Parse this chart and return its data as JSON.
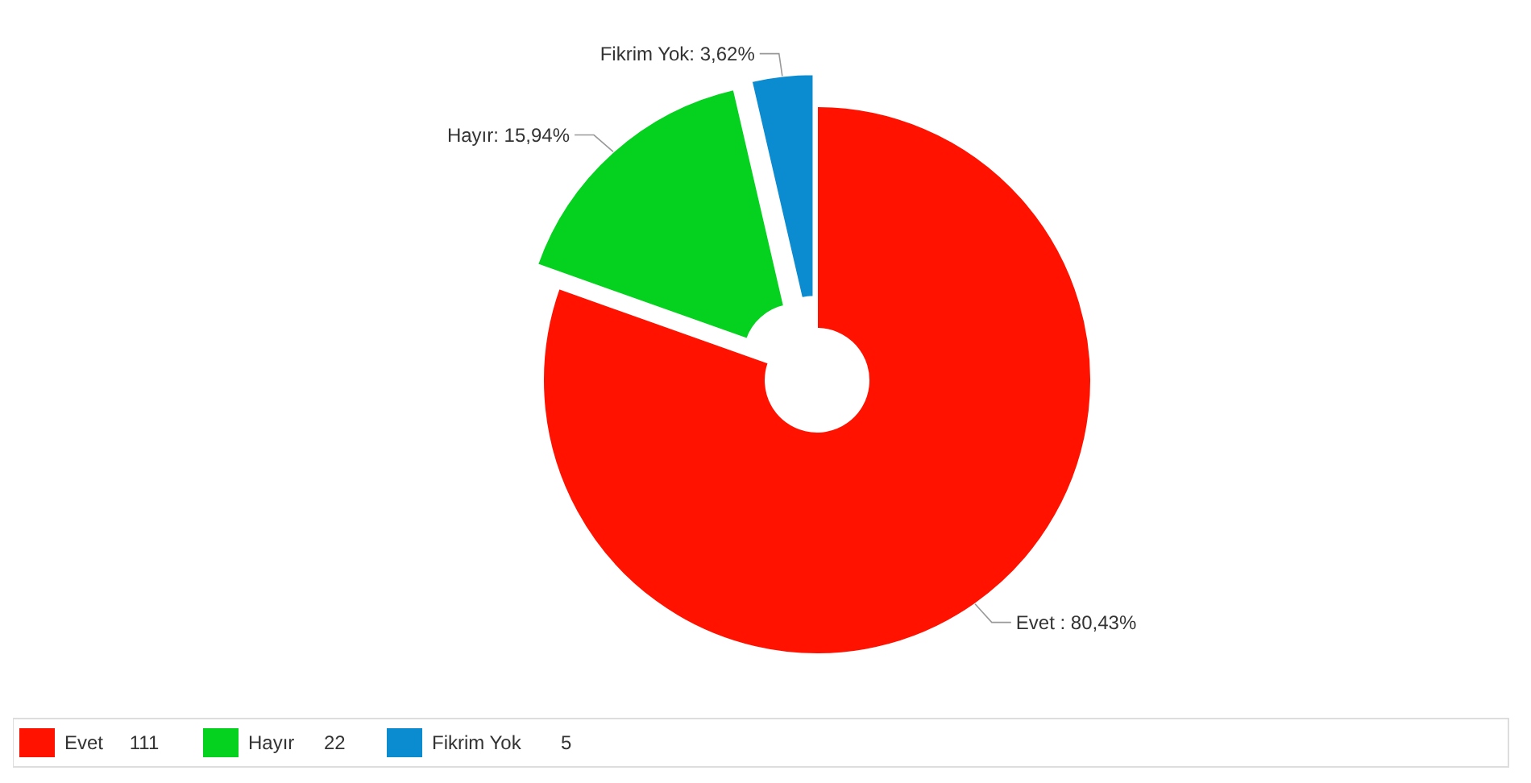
{
  "chart_data": {
    "type": "donut",
    "categories": [
      "Evet",
      "Hayır",
      "Fikrim Yok"
    ],
    "values": [
      111,
      22,
      5
    ],
    "colors": [
      "#ff1200",
      "#05d11f",
      "#0b8bd0"
    ],
    "value_labels": [
      "111",
      "22",
      "5"
    ],
    "annotations": [
      "Evet : 80,43%",
      "Hayır: 15,94%",
      "Fikrim Yok: 3,62%"
    ],
    "legend": "bottom"
  }
}
